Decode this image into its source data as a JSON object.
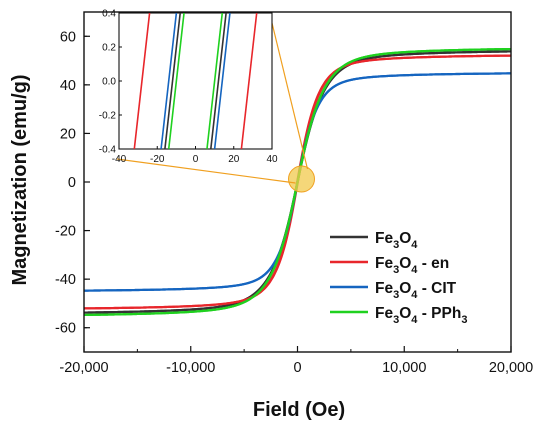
{
  "chart_data": {
    "type": "line",
    "xlabel": "Field (Oe)",
    "ylabel": "Magnetization (emu/g)",
    "xlim": [
      -20000,
      20000
    ],
    "ylim": [
      -70,
      70
    ],
    "x_ticks": [
      {
        "value": -20000,
        "label": "-20,000"
      },
      {
        "value": -10000,
        "label": "-10,000"
      },
      {
        "value": 0,
        "label": "0"
      },
      {
        "value": 10000,
        "label": "10,000"
      },
      {
        "value": 20000,
        "label": "20,000"
      }
    ],
    "y_ticks": [
      {
        "value": -60,
        "label": "-60"
      },
      {
        "value": -40,
        "label": "-40"
      },
      {
        "value": -20,
        "label": "-20"
      },
      {
        "value": 0,
        "label": "0"
      },
      {
        "value": 20,
        "label": "20"
      },
      {
        "value": 40,
        "label": "40"
      },
      {
        "value": 60,
        "label": "60"
      }
    ],
    "legend_position": "center-right",
    "series": [
      {
        "name": "Fe3O4",
        "legend": {
          "base": "Fe",
          "sub1": "3",
          "mid": "O",
          "sub2": "4",
          "suffix": "",
          "sub3": ""
        },
        "color": "#333333",
        "ms": 55,
        "scale": 2500,
        "coercivity": 12
      },
      {
        "name": "Fe3O4 - en",
        "legend": {
          "base": "Fe",
          "sub1": "3",
          "mid": "O",
          "sub2": "4",
          "suffix": " - en",
          "sub3": ""
        },
        "color": "#e8262b",
        "ms": 53,
        "scale": 2000,
        "coercivity": 28
      },
      {
        "name": "Fe3O4 - CIT",
        "legend": {
          "base": "Fe",
          "sub1": "3",
          "mid": "O",
          "sub2": "4",
          "suffix": " - CIT",
          "sub3": ""
        },
        "color": "#1565c0",
        "ms": 45.5,
        "scale": 1900,
        "coercivity": 14
      },
      {
        "name": "Fe3O4 - PPh3",
        "legend": {
          "base": "Fe",
          "sub1": "3",
          "mid": "O",
          "sub2": "4",
          "suffix": " - PPh",
          "sub3": "3"
        },
        "color": "#1fd11f",
        "ms": 56,
        "scale": 2500,
        "coercivity": 10
      }
    ],
    "inset": {
      "xlim": [
        -40,
        40
      ],
      "ylim": [
        -0.4,
        0.4
      ],
      "x_ticks": [
        {
          "value": -40,
          "label": "-40"
        },
        {
          "value": -20,
          "label": "-20"
        },
        {
          "value": 0,
          "label": "0"
        },
        {
          "value": 20,
          "label": "20"
        },
        {
          "value": 40,
          "label": "40"
        }
      ],
      "y_ticks": [
        {
          "value": -0.4,
          "label": "-0.4"
        },
        {
          "value": -0.2,
          "label": "-0.2"
        },
        {
          "value": 0.0,
          "label": "0.0"
        },
        {
          "value": 0.2,
          "label": "0.2"
        },
        {
          "value": 0.4,
          "label": "0.4"
        }
      ],
      "highlight_color": "#f2c94c",
      "connector_color": "#f0a020"
    }
  }
}
